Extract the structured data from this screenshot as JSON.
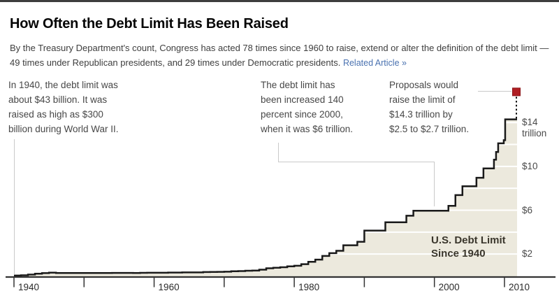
{
  "page": {
    "title": "How Often the Debt Limit Has Been Raised",
    "subtitle": "By the Treasury Department's count, Congress has acted 78 times since 1960 to raise, extend or alter the definition of the debt limit — 49 times under Republican presidents, and 29 times under Democratic presidents.",
    "related_link": "Related Article »"
  },
  "annotations": [
    {
      "text": "In 1940, the debt limit was\nabout $43 billion. It was\nraised as high as $300\nbillion during World War II."
    },
    {
      "text": "The debt limit has\nbeen increased 140\npercent since 2000,\nwhen it was $6 trillion."
    },
    {
      "text": "Proposals would\nraise the limit of\n$14.3 trillion by\n$2.5 to $2.7 trillion."
    }
  ],
  "chart_data": {
    "type": "area",
    "subtype": "step",
    "title": "U.S. Debt Limit\nSince 1940",
    "units": "trillions of dollars",
    "xlim": [
      1940,
      2011.8
    ],
    "ylim": [
      0,
      17
    ],
    "grid": "horizontal, every $2 trillion, white over shaded area",
    "legend": "none",
    "series": [
      {
        "name": "U.S. Debt Limit",
        "step_points": [
          [
            1940,
            0.043
          ],
          [
            1941,
            0.065
          ],
          [
            1942,
            0.125
          ],
          [
            1943,
            0.21
          ],
          [
            1944,
            0.26
          ],
          [
            1945,
            0.3
          ],
          [
            1946,
            0.275
          ],
          [
            1954,
            0.281
          ],
          [
            1957,
            0.275
          ],
          [
            1958,
            0.288
          ],
          [
            1959,
            0.295
          ],
          [
            1960,
            0.293
          ],
          [
            1961,
            0.298
          ],
          [
            1962,
            0.308
          ],
          [
            1963,
            0.315
          ],
          [
            1964,
            0.324
          ],
          [
            1965,
            0.328
          ],
          [
            1966,
            0.33
          ],
          [
            1967,
            0.358
          ],
          [
            1968,
            0.365
          ],
          [
            1969,
            0.377
          ],
          [
            1970,
            0.395
          ],
          [
            1971,
            0.43
          ],
          [
            1972,
            0.45
          ],
          [
            1973,
            0.475
          ],
          [
            1974,
            0.495
          ],
          [
            1975,
            0.577
          ],
          [
            1976,
            0.7
          ],
          [
            1977,
            0.752
          ],
          [
            1978,
            0.798
          ],
          [
            1979,
            0.879
          ],
          [
            1980,
            0.935
          ],
          [
            1981,
            1.08
          ],
          [
            1982,
            1.29
          ],
          [
            1983,
            1.49
          ],
          [
            1984,
            1.824
          ],
          [
            1985,
            2.079
          ],
          [
            1986,
            2.3
          ],
          [
            1987,
            2.8
          ],
          [
            1989,
            3.123
          ],
          [
            1990,
            4.145
          ],
          [
            1993,
            4.9
          ],
          [
            1996,
            5.5
          ],
          [
            1997,
            5.95
          ],
          [
            2002,
            6.4
          ],
          [
            2003,
            7.384
          ],
          [
            2004,
            8.184
          ],
          [
            2006,
            8.965
          ],
          [
            2007,
            9.815
          ],
          [
            2008.5,
            10.615
          ],
          [
            2008.8,
            11.315
          ],
          [
            2009.1,
            12.104
          ],
          [
            2009.9,
            12.394
          ],
          [
            2010.1,
            14.294
          ]
        ]
      }
    ],
    "proposal_marker": {
      "year": 2011.7,
      "value": 16.8,
      "meaning": "proposed limit of $16.8–$17 trillion ($14.3T raised by $2.5–$2.7T)"
    },
    "x_ticks": [
      {
        "year": 1940,
        "label": "1940"
      },
      {
        "year": 1950,
        "label": ""
      },
      {
        "year": 1960,
        "label": "1960"
      },
      {
        "year": 1970,
        "label": ""
      },
      {
        "year": 1980,
        "label": "1980"
      },
      {
        "year": 1990,
        "label": ""
      },
      {
        "year": 2000,
        "label": "2000"
      },
      {
        "year": 2010,
        "label": "2010"
      }
    ],
    "y_gridlines": [
      2,
      4,
      6,
      8,
      10,
      12,
      14
    ],
    "y_tick_labels": [
      {
        "value": 14,
        "label": "$14\ntrillion"
      },
      {
        "value": 10,
        "label": "$10"
      },
      {
        "value": 6,
        "label": "$6"
      },
      {
        "value": 2,
        "label": "$2"
      }
    ]
  },
  "colors": {
    "area_fill": "#ece9dd",
    "step_line": "#1a1a1a",
    "gridline": "#ffffff",
    "proposal_marker": "#b01e23",
    "proposal_marker_border": "#8c1418",
    "leader_line": "#c9c9c9",
    "axis": "#333333",
    "link": "#4a72b0"
  }
}
